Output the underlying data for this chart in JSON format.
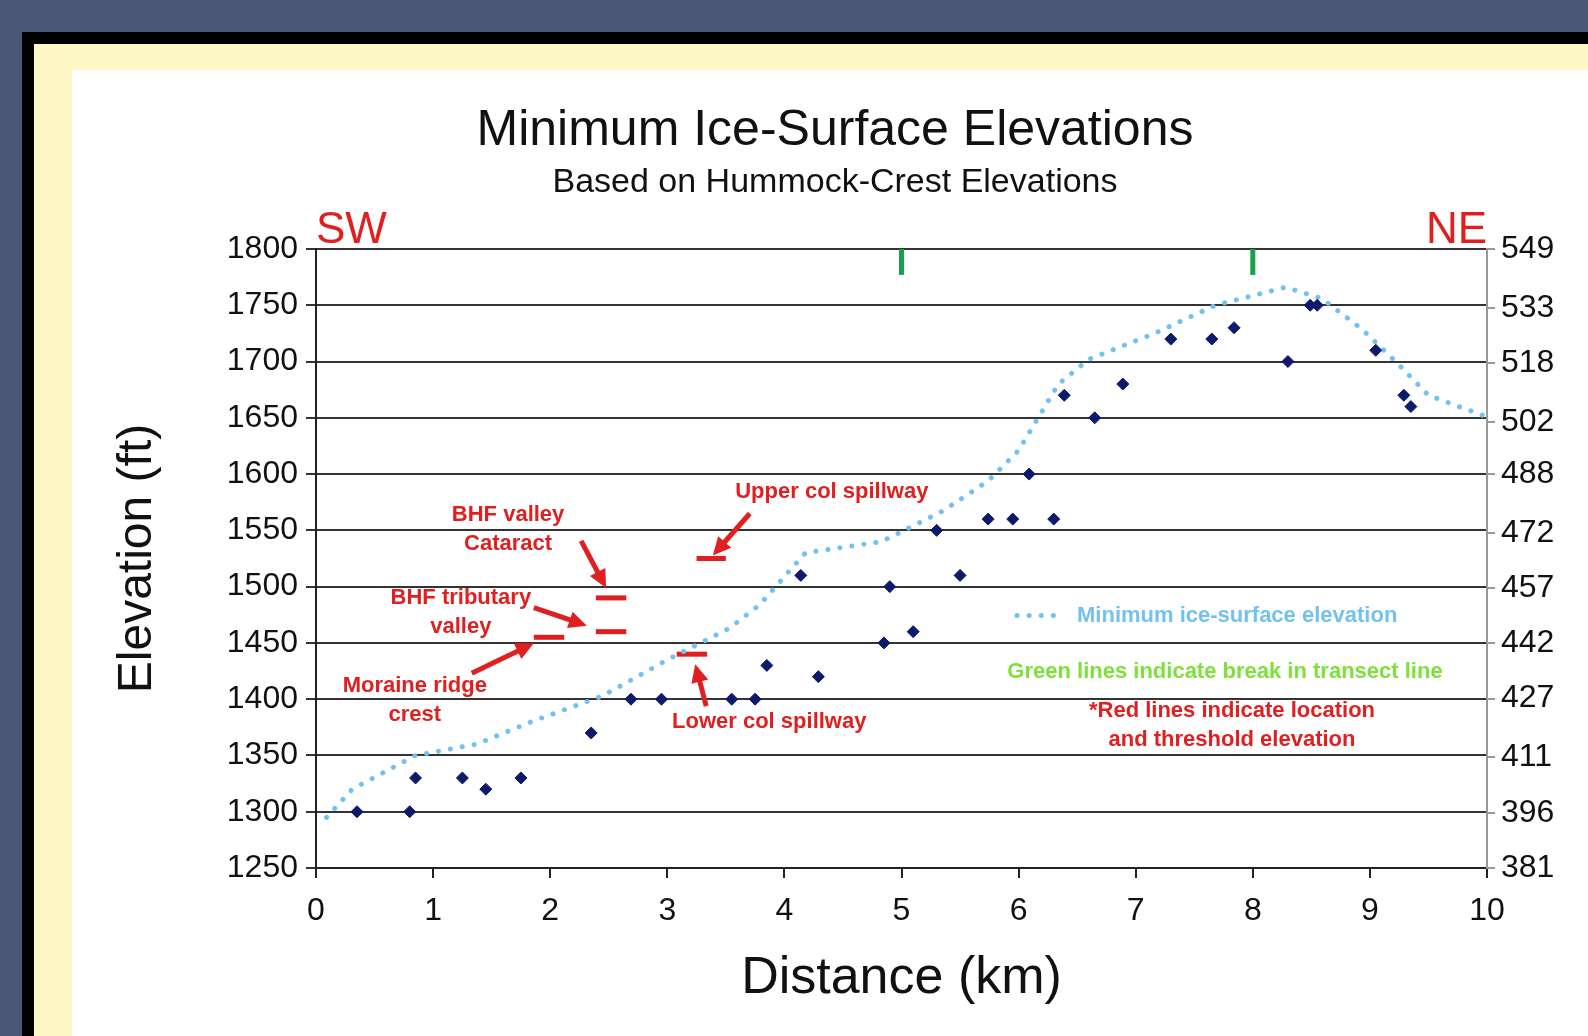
{
  "chart_data": {
    "type": "scatter",
    "title": "Minimum Ice-Surface Elevations",
    "subtitle": "Based on Hummock-Crest Elevations",
    "xlabel": "Distance (km)",
    "ylabel": "Elevation (ft)",
    "xlim": [
      0,
      10
    ],
    "xticks": [
      0,
      1,
      2,
      3,
      4,
      5,
      6,
      7,
      8,
      9,
      10
    ],
    "ylim": [
      1250,
      1800
    ],
    "yticks": [
      1250,
      1300,
      1350,
      1400,
      1450,
      1500,
      1550,
      1600,
      1650,
      1700,
      1750,
      1800
    ],
    "y2lim": [
      381,
      549
    ],
    "y2ticks": [
      381,
      396,
      411,
      427,
      442,
      457,
      472,
      488,
      502,
      518,
      533,
      549
    ],
    "grid": "y",
    "legend": "right",
    "series": [
      {
        "type": "scatter",
        "color": "#0d1a6b",
        "marker": "diamond",
        "x": [
          0.35,
          0.8,
          0.85,
          1.25,
          1.45,
          1.75,
          2.35,
          2.69,
          2.95,
          3.55,
          3.75,
          3.85,
          4.14,
          4.29,
          4.85,
          4.9,
          5.1,
          5.3,
          5.5,
          5.74,
          5.95,
          6.09,
          6.3,
          6.39,
          6.65,
          6.89,
          7.3,
          7.65,
          7.84,
          8.3,
          8.49,
          8.55,
          9.05,
          9.29,
          9.35
        ],
        "values": [
          1300,
          1300,
          1330,
          1330,
          1320,
          1330,
          1370,
          1400,
          1400,
          1400,
          1400,
          1430,
          1510,
          1420,
          1450,
          1500,
          1460,
          1550,
          1510,
          1560,
          1560,
          1600,
          1560,
          1670,
          1650,
          1680,
          1720,
          1720,
          1730,
          1700,
          1750,
          1750,
          1710,
          1670,
          1660
        ]
      },
      {
        "type": "line",
        "name": "Minimum ice-surface elevation",
        "color": "#73c2ee",
        "marker": "none",
        "line_style": "dotted",
        "x": [
          0.09,
          0.31,
          0.85,
          1.37,
          1.84,
          2.45,
          3.0,
          3.53,
          3.79,
          4.18,
          4.83,
          5.35,
          5.74,
          6.0,
          6.34,
          6.6,
          7.16,
          7.68,
          8.28,
          8.59,
          8.93,
          9.24,
          9.5,
          9.76,
          9.97
        ],
        "values": [
          1295,
          1320,
          1350,
          1360,
          1380,
          1403,
          1435,
          1463,
          1484,
          1530,
          1540,
          1567,
          1594,
          1621,
          1680,
          1702,
          1725,
          1750,
          1766,
          1756,
          1729,
          1698,
          1670,
          1660,
          1652
        ]
      },
      {
        "type": "line",
        "color": "#e02020",
        "marker": "none",
        "x": [
          1.86,
          2.12
        ],
        "values": [
          1455,
          1455
        ]
      },
      {
        "type": "line",
        "color": "#e02020",
        "marker": "none",
        "x": [
          2.39,
          2.65
        ],
        "values": [
          1460,
          1460
        ]
      },
      {
        "type": "line",
        "color": "#e02020",
        "marker": "none",
        "x": [
          2.39,
          2.65
        ],
        "values": [
          1490,
          1490
        ]
      },
      {
        "type": "line",
        "color": "#e02020",
        "marker": "none",
        "x": [
          3.25,
          3.5
        ],
        "values": [
          1525,
          1525
        ]
      },
      {
        "type": "line",
        "color": "#e02020",
        "marker": "none",
        "x": [
          3.08,
          3.34
        ],
        "values": [
          1440,
          1440
        ]
      },
      {
        "type": "line",
        "color": "#1aa04a",
        "marker": "none",
        "x": [
          5,
          5
        ],
        "values": [
          1777,
          1800
        ]
      },
      {
        "type": "line",
        "color": "#1aa04a",
        "marker": "none",
        "x": [
          8,
          8
        ],
        "values": [
          1777,
          1800
        ]
      }
    ],
    "annotations": [
      "SW",
      "NE",
      {
        "text": "Moraine ridge\ncrest",
        "x": 1.86,
        "y": 1455
      },
      {
        "text": "BHF tributary\nvalley",
        "x": 2.39,
        "y": 1460
      },
      {
        "text": "BHF valley\nCataract",
        "x": 2.52,
        "y": 1490
      },
      {
        "text": "Upper col spillway",
        "x": 3.38,
        "y": 1525
      },
      {
        "text": "Lower col spillway",
        "x": 3.23,
        "y": 1440
      },
      "Green lines indicate break in transect line",
      "*Red lines indicate location\nand threshold elevation"
    ]
  }
}
